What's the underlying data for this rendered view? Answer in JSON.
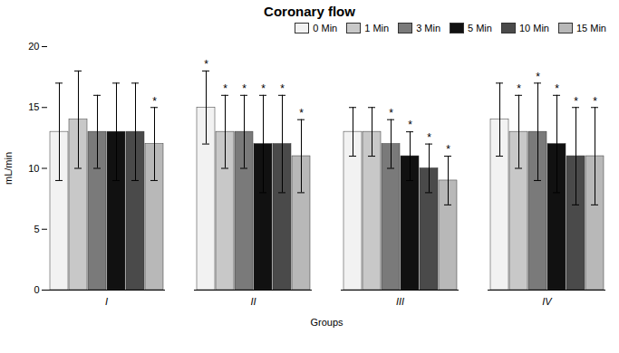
{
  "chart_data": {
    "type": "bar",
    "title": "Coronary flow",
    "xlabel": "Groups",
    "ylabel": "mL/min",
    "categories": [
      "I",
      "II",
      "III",
      "IV"
    ],
    "series": [
      {
        "name": "0 Min",
        "color": "#f2f2f2",
        "values": [
          13,
          15,
          13,
          14
        ],
        "errors": [
          4,
          3,
          2,
          3
        ],
        "significant": [
          false,
          true,
          false,
          false
        ]
      },
      {
        "name": "1 Min",
        "color": "#c8c8c8",
        "values": [
          14,
          13,
          13,
          13
        ],
        "errors": [
          4,
          3,
          2,
          3
        ],
        "significant": [
          false,
          true,
          false,
          true
        ]
      },
      {
        "name": "3 Min",
        "color": "#7a7a7a",
        "values": [
          13,
          13,
          12,
          13
        ],
        "errors": [
          3,
          3,
          2,
          4
        ],
        "significant": [
          false,
          true,
          true,
          true
        ]
      },
      {
        "name": "5 Min",
        "color": "#111111",
        "values": [
          13,
          12,
          11,
          12
        ],
        "errors": [
          4,
          4,
          2,
          4
        ],
        "significant": [
          false,
          true,
          true,
          true
        ]
      },
      {
        "name": "10 Min",
        "color": "#4a4a4a",
        "values": [
          13,
          12,
          10,
          11
        ],
        "errors": [
          4,
          4,
          2,
          4
        ],
        "significant": [
          false,
          true,
          true,
          true
        ]
      },
      {
        "name": "15 Min",
        "color": "#b8b8b8",
        "values": [
          12,
          11,
          9,
          11
        ],
        "errors": [
          3,
          3,
          2,
          4
        ],
        "significant": [
          true,
          true,
          true,
          true
        ]
      }
    ],
    "annotation": "*",
    "ylim": [
      0,
      20
    ],
    "yticks": [
      0,
      5,
      10,
      15,
      20
    ],
    "grid": false,
    "legend": "upper right"
  }
}
